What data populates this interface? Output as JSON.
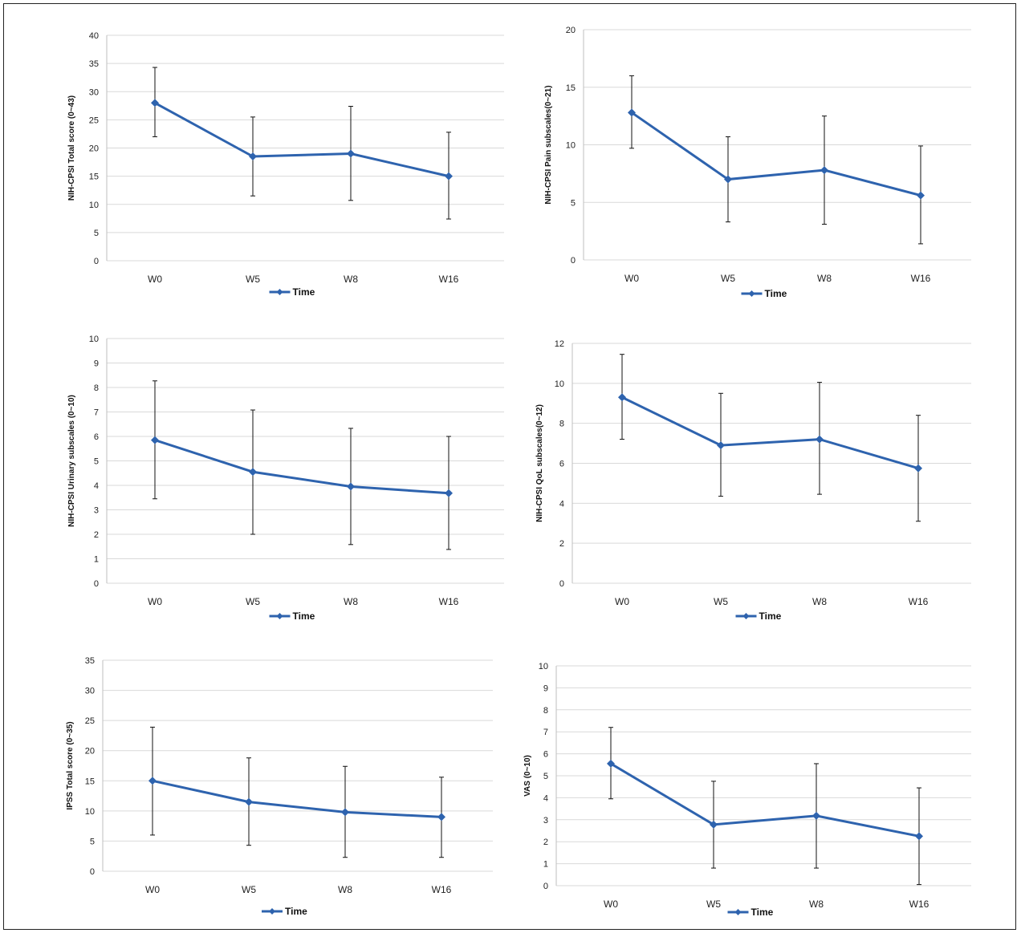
{
  "chart_data": [
    {
      "type": "line",
      "categories": [
        "W0",
        "W5",
        "W8",
        "W16"
      ],
      "ylabel": "NIH-CPSI Total score (0~43)",
      "ylim": [
        0,
        40
      ],
      "yticks": [
        0,
        5,
        10,
        15,
        20,
        25,
        30,
        35,
        40
      ],
      "series": [
        {
          "name": "Time",
          "values": [
            28,
            18.5,
            19,
            15
          ],
          "err_low": [
            22,
            11.5,
            10.7,
            7.4
          ],
          "err_high": [
            34.3,
            25.5,
            27.4,
            22.8
          ],
          "color": "#2e63ae"
        }
      ],
      "grid": true,
      "legend": "bottom"
    },
    {
      "type": "line",
      "categories": [
        "W0",
        "W5",
        "W8",
        "W16"
      ],
      "ylabel": "NIH-CPSI Pain subscales(0~21)",
      "ylim": [
        0,
        20
      ],
      "yticks": [
        0,
        5,
        10,
        15,
        20
      ],
      "series": [
        {
          "name": "Time",
          "values": [
            12.8,
            7,
            7.8,
            5.6
          ],
          "err_low": [
            9.7,
            3.3,
            3.1,
            1.4
          ],
          "err_high": [
            16,
            10.7,
            12.5,
            9.9
          ],
          "color": "#2e63ae"
        }
      ],
      "grid": true,
      "legend": "bottom"
    },
    {
      "type": "line",
      "categories": [
        "W0",
        "W5",
        "W8",
        "W16"
      ],
      "ylabel": "NIH-CPSI Urinary subscales (0~10)",
      "ylim": [
        0,
        10
      ],
      "yticks": [
        0,
        1,
        2,
        3,
        4,
        5,
        6,
        7,
        8,
        9,
        10
      ],
      "series": [
        {
          "name": "Time",
          "values": [
            5.85,
            4.55,
            3.95,
            3.68
          ],
          "err_low": [
            3.45,
            2,
            1.58,
            1.38
          ],
          "err_high": [
            8.27,
            7.08,
            6.33,
            6
          ],
          "color": "#2e63ae"
        }
      ],
      "grid": true,
      "legend": "bottom"
    },
    {
      "type": "line",
      "categories": [
        "W0",
        "W5",
        "W8",
        "W16"
      ],
      "ylabel": "NIH-CPSI QoL subscales(0~12)",
      "ylim": [
        0,
        12
      ],
      "yticks": [
        0,
        2,
        4,
        6,
        8,
        10,
        12
      ],
      "series": [
        {
          "name": "Time",
          "values": [
            9.3,
            6.9,
            7.2,
            5.75
          ],
          "err_low": [
            7.2,
            4.35,
            4.45,
            3.1
          ],
          "err_high": [
            11.45,
            9.5,
            10.05,
            8.4
          ],
          "color": "#2e63ae"
        }
      ],
      "grid": true,
      "legend": "bottom"
    },
    {
      "type": "line",
      "categories": [
        "W0",
        "W5",
        "W8",
        "W16"
      ],
      "ylabel": "IPSS Total score (0~35)",
      "ylim": [
        0,
        35
      ],
      "yticks": [
        0,
        5,
        10,
        15,
        20,
        25,
        30,
        35
      ],
      "series": [
        {
          "name": "Time",
          "values": [
            15,
            11.5,
            9.8,
            9
          ],
          "err_low": [
            6,
            4.3,
            2.3,
            2.3
          ],
          "err_high": [
            23.9,
            18.8,
            17.4,
            15.6
          ],
          "color": "#2e63ae"
        }
      ],
      "grid": true,
      "legend": "bottom"
    },
    {
      "type": "line",
      "categories": [
        "W0",
        "W5",
        "W8",
        "W16"
      ],
      "ylabel": "VAS (0~10)",
      "ylim": [
        0,
        10
      ],
      "yticks": [
        0,
        1,
        2,
        3,
        4,
        5,
        6,
        7,
        8,
        9,
        10
      ],
      "series": [
        {
          "name": "Time",
          "values": [
            5.55,
            2.78,
            3.18,
            2.25
          ],
          "err_low": [
            3.95,
            0.8,
            0.8,
            0.05
          ],
          "err_high": [
            7.2,
            4.75,
            5.55,
            4.45
          ],
          "color": "#2e63ae"
        }
      ],
      "grid": true,
      "legend": "bottom"
    }
  ]
}
